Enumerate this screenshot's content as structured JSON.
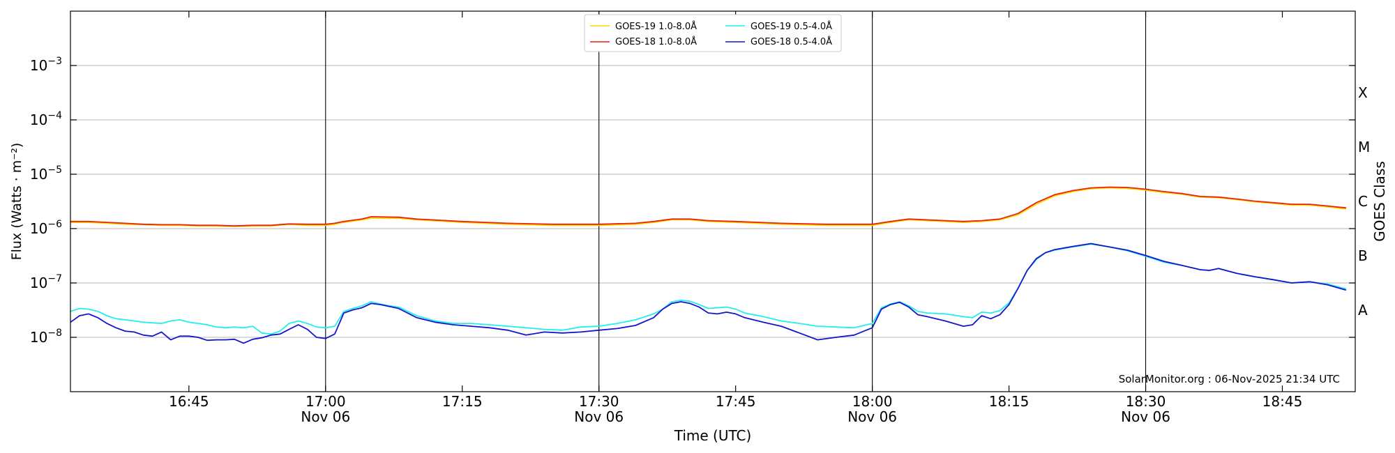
{
  "chart_data": {
    "type": "line",
    "title": "",
    "xlabel": "Time (UTC)",
    "ylabel": "Flux (Watts · m⁻²)",
    "ylabel_right": "GOES Class",
    "y_scale": "log",
    "ylim": [
      1e-09,
      0.01
    ],
    "xlim": [
      "2025-11-06 16:32",
      "2025-11-06 18:53"
    ],
    "y_ticks": [
      {
        "value": 1e-08,
        "mant": "10",
        "exp": "−8"
      },
      {
        "value": 1e-07,
        "mant": "10",
        "exp": "−7"
      },
      {
        "value": 1e-06,
        "mant": "10",
        "exp": "−6"
      },
      {
        "value": 1e-05,
        "mant": "10",
        "exp": "−5"
      },
      {
        "value": 0.0001,
        "mant": "10",
        "exp": "−4"
      },
      {
        "value": 0.001,
        "mant": "10",
        "exp": "−3"
      }
    ],
    "x_ticks": [
      {
        "time": "16:45",
        "label": "16:45",
        "sublabel": ""
      },
      {
        "time": "17:00",
        "label": "17:00",
        "sublabel": "Nov 06"
      },
      {
        "time": "17:15",
        "label": "17:15",
        "sublabel": ""
      },
      {
        "time": "17:30",
        "label": "17:30",
        "sublabel": "Nov 06"
      },
      {
        "time": "17:45",
        "label": "17:45",
        "sublabel": ""
      },
      {
        "time": "18:00",
        "label": "18:00",
        "sublabel": "Nov 06"
      },
      {
        "time": "18:15",
        "label": "18:15",
        "sublabel": ""
      },
      {
        "time": "18:30",
        "label": "18:30",
        "sublabel": "Nov 06"
      },
      {
        "time": "18:45",
        "label": "18:45",
        "sublabel": ""
      }
    ],
    "vertical_lines": [
      "17:00",
      "17:30",
      "18:00",
      "18:30"
    ],
    "goes_classes": [
      {
        "label": "A",
        "value": 3.16e-08
      },
      {
        "label": "B",
        "value": 3.16e-07
      },
      {
        "label": "C",
        "value": 3.16e-06
      },
      {
        "label": "M",
        "value": 3.16e-05
      },
      {
        "label": "X",
        "value": 0.000316
      }
    ],
    "grid": true,
    "legend_position": "top-center",
    "annotation": "SolarMonitor.org : 06-Nov-2025 21:34 UTC",
    "series": [
      {
        "name": "GOES-19 1.0-8.0Å",
        "color": "#ffd700",
        "x": [
          "16:32",
          "16:34",
          "16:36",
          "16:38",
          "16:40",
          "16:42",
          "16:44",
          "16:46",
          "16:48",
          "16:50",
          "16:52",
          "16:54",
          "16:56",
          "16:58",
          "17:00",
          "17:01",
          "17:02",
          "17:04",
          "17:05",
          "17:08",
          "17:10",
          "17:15",
          "17:20",
          "17:25",
          "17:30",
          "17:34",
          "17:36",
          "17:38",
          "17:40",
          "17:42",
          "17:45",
          "17:50",
          "17:55",
          "18:00",
          "18:02",
          "18:04",
          "18:08",
          "18:10",
          "18:12",
          "18:14",
          "18:16",
          "18:18",
          "18:20",
          "18:22",
          "18:24",
          "18:26",
          "18:28",
          "18:30",
          "18:32",
          "18:34",
          "18:36",
          "18:38",
          "18:40",
          "18:42",
          "18:44",
          "18:46",
          "18:48",
          "18:50",
          "18:52"
        ],
        "y": [
          1.3e-06,
          1.3e-06,
          1.25e-06,
          1.2e-06,
          1.18e-06,
          1.15e-06,
          1.15e-06,
          1.12e-06,
          1.12e-06,
          1.1e-06,
          1.12e-06,
          1.12e-06,
          1.2e-06,
          1.15e-06,
          1.15e-06,
          1.2e-06,
          1.3e-06,
          1.45e-06,
          1.55e-06,
          1.55e-06,
          1.45e-06,
          1.3e-06,
          1.2e-06,
          1.15e-06,
          1.15e-06,
          1.2e-06,
          1.3e-06,
          1.45e-06,
          1.45e-06,
          1.35e-06,
          1.3e-06,
          1.2e-06,
          1.15e-06,
          1.15e-06,
          1.3e-06,
          1.45e-06,
          1.35e-06,
          1.3e-06,
          1.35e-06,
          1.45e-06,
          1.8e-06,
          2.8e-06,
          4e-06,
          4.8e-06,
          5.4e-06,
          5.6e-06,
          5.5e-06,
          5.1e-06,
          4.6e-06,
          4.3e-06,
          3.8e-06,
          3.7e-06,
          3.4e-06,
          3.1e-06,
          2.9e-06,
          2.7e-06,
          2.7e-06,
          2.5e-06,
          2.3e-06
        ]
      },
      {
        "name": "GOES-18 1.0-8.0Å",
        "color": "#e8250c",
        "x": [
          "16:32",
          "16:34",
          "16:36",
          "16:38",
          "16:40",
          "16:42",
          "16:44",
          "16:46",
          "16:48",
          "16:50",
          "16:52",
          "16:54",
          "16:56",
          "16:58",
          "17:00",
          "17:01",
          "17:02",
          "17:04",
          "17:05",
          "17:08",
          "17:10",
          "17:15",
          "17:20",
          "17:25",
          "17:30",
          "17:34",
          "17:36",
          "17:38",
          "17:40",
          "17:42",
          "17:45",
          "17:50",
          "17:55",
          "18:00",
          "18:02",
          "18:04",
          "18:08",
          "18:10",
          "18:12",
          "18:14",
          "18:16",
          "18:18",
          "18:20",
          "18:22",
          "18:24",
          "18:26",
          "18:28",
          "18:30",
          "18:32",
          "18:34",
          "18:36",
          "18:38",
          "18:40",
          "18:42",
          "18:44",
          "18:46",
          "18:48",
          "18:50",
          "18:52"
        ],
        "y": [
          1.35e-06,
          1.35e-06,
          1.3e-06,
          1.25e-06,
          1.2e-06,
          1.18e-06,
          1.18e-06,
          1.15e-06,
          1.15e-06,
          1.12e-06,
          1.15e-06,
          1.15e-06,
          1.22e-06,
          1.2e-06,
          1.2e-06,
          1.25e-06,
          1.35e-06,
          1.5e-06,
          1.65e-06,
          1.62e-06,
          1.5e-06,
          1.35e-06,
          1.25e-06,
          1.2e-06,
          1.2e-06,
          1.25e-06,
          1.35e-06,
          1.5e-06,
          1.5e-06,
          1.4e-06,
          1.35e-06,
          1.25e-06,
          1.2e-06,
          1.2e-06,
          1.35e-06,
          1.5e-06,
          1.4e-06,
          1.35e-06,
          1.4e-06,
          1.5e-06,
          1.9e-06,
          3e-06,
          4.2e-06,
          5e-06,
          5.6e-06,
          5.8e-06,
          5.7e-06,
          5.3e-06,
          4.8e-06,
          4.4e-06,
          3.9e-06,
          3.8e-06,
          3.5e-06,
          3.2e-06,
          3e-06,
          2.8e-06,
          2.8e-06,
          2.6e-06,
          2.4e-06
        ]
      },
      {
        "name": "GOES-19 0.5-4.0Å",
        "color": "#22eeee",
        "x": [
          "16:32",
          "16:33",
          "16:34",
          "16:35",
          "16:36",
          "16:37",
          "16:38",
          "16:39",
          "16:40",
          "16:41",
          "16:42",
          "16:43",
          "16:44",
          "16:45",
          "16:46",
          "16:47",
          "16:48",
          "16:49",
          "16:50",
          "16:51",
          "16:52",
          "16:53",
          "16:54",
          "16:55",
          "16:56",
          "16:57",
          "16:58",
          "16:59",
          "17:00",
          "17:01",
          "17:02",
          "17:03",
          "17:04",
          "17:05",
          "17:06",
          "17:07",
          "17:08",
          "17:10",
          "17:12",
          "17:14",
          "17:16",
          "17:18",
          "17:20",
          "17:22",
          "17:24",
          "17:26",
          "17:28",
          "17:30",
          "17:32",
          "17:34",
          "17:36",
          "17:37",
          "17:38",
          "17:39",
          "17:40",
          "17:41",
          "17:42",
          "17:43",
          "17:44",
          "17:45",
          "17:46",
          "17:48",
          "17:50",
          "17:52",
          "17:54",
          "17:56",
          "17:58",
          "18:00",
          "18:01",
          "18:02",
          "18:03",
          "18:04",
          "18:05",
          "18:06",
          "18:08",
          "18:10",
          "18:11",
          "18:12",
          "18:13",
          "18:14",
          "18:15",
          "18:16",
          "18:17",
          "18:18",
          "18:19",
          "18:20",
          "18:22",
          "18:24",
          "18:26",
          "18:28",
          "18:30",
          "18:32",
          "18:34",
          "18:36",
          "18:37",
          "18:38",
          "18:40",
          "18:42",
          "18:44",
          "18:46",
          "18:48",
          "18:50",
          "18:52"
        ],
        "y": [
          3e-08,
          3.4e-08,
          3.3e-08,
          3e-08,
          2.5e-08,
          2.2e-08,
          2.1e-08,
          2e-08,
          1.9e-08,
          1.85e-08,
          1.8e-08,
          2e-08,
          2.1e-08,
          1.9e-08,
          1.8e-08,
          1.7e-08,
          1.55e-08,
          1.5e-08,
          1.55e-08,
          1.5e-08,
          1.6e-08,
          1.2e-08,
          1.15e-08,
          1.3e-08,
          1.8e-08,
          2e-08,
          1.8e-08,
          1.55e-08,
          1.5e-08,
          1.6e-08,
          3e-08,
          3.4e-08,
          3.8e-08,
          4.5e-08,
          4.1e-08,
          3.8e-08,
          3.6e-08,
          2.5e-08,
          2e-08,
          1.8e-08,
          1.8e-08,
          1.7e-08,
          1.6e-08,
          1.5e-08,
          1.4e-08,
          1.35e-08,
          1.55e-08,
          1.6e-08,
          1.8e-08,
          2.1e-08,
          2.7e-08,
          3.3e-08,
          4.5e-08,
          4.8e-08,
          4.6e-08,
          4e-08,
          3.4e-08,
          3.5e-08,
          3.6e-08,
          3.3e-08,
          2.8e-08,
          2.4e-08,
          2e-08,
          1.8e-08,
          1.6e-08,
          1.55e-08,
          1.5e-08,
          1.8e-08,
          3.5e-08,
          4.1e-08,
          4.5e-08,
          3.8e-08,
          3e-08,
          2.8e-08,
          2.7e-08,
          2.4e-08,
          2.3e-08,
          2.9e-08,
          2.8e-08,
          3.1e-08,
          4.3e-08,
          8e-08,
          1.7e-07,
          2.7e-07,
          3.6e-07,
          4e-07,
          4.6e-07,
          5.2e-07,
          4.6e-07,
          3.9e-07,
          3.1e-07,
          2.4e-07,
          2.1e-07,
          1.75e-07,
          1.7e-07,
          1.85e-07,
          1.5e-07,
          1.3e-07,
          1.15e-07,
          1e-07,
          1.05e-07,
          9.5e-08,
          7.8e-08
        ]
      },
      {
        "name": "GOES-18 0.5-4.0Å",
        "color": "#1414cc",
        "x": [
          "16:32",
          "16:33",
          "16:34",
          "16:35",
          "16:36",
          "16:37",
          "16:38",
          "16:39",
          "16:40",
          "16:41",
          "16:42",
          "16:43",
          "16:44",
          "16:45",
          "16:46",
          "16:47",
          "16:48",
          "16:49",
          "16:50",
          "16:51",
          "16:52",
          "16:53",
          "16:54",
          "16:55",
          "16:56",
          "16:57",
          "16:58",
          "16:59",
          "17:00",
          "17:01",
          "17:02",
          "17:03",
          "17:04",
          "17:05",
          "17:06",
          "17:07",
          "17:08",
          "17:10",
          "17:12",
          "17:14",
          "17:16",
          "17:18",
          "17:20",
          "17:22",
          "17:24",
          "17:26",
          "17:28",
          "17:30",
          "17:32",
          "17:34",
          "17:36",
          "17:37",
          "17:38",
          "17:39",
          "17:40",
          "17:41",
          "17:42",
          "17:43",
          "17:44",
          "17:45",
          "17:46",
          "17:48",
          "17:50",
          "17:52",
          "17:54",
          "17:56",
          "17:58",
          "18:00",
          "18:01",
          "18:02",
          "18:03",
          "18:04",
          "18:05",
          "18:06",
          "18:08",
          "18:10",
          "18:11",
          "18:12",
          "18:13",
          "18:14",
          "18:15",
          "18:16",
          "18:17",
          "18:18",
          "18:19",
          "18:20",
          "18:22",
          "18:24",
          "18:26",
          "18:28",
          "18:30",
          "18:32",
          "18:34",
          "18:36",
          "18:37",
          "18:38",
          "18:40",
          "18:42",
          "18:44",
          "18:46",
          "18:48",
          "18:50",
          "18:52"
        ],
        "y": [
          1.9e-08,
          2.5e-08,
          2.7e-08,
          2.3e-08,
          1.8e-08,
          1.5e-08,
          1.3e-08,
          1.25e-08,
          1.1e-08,
          1.05e-08,
          1.25e-08,
          9e-09,
          1.05e-08,
          1.05e-08,
          1e-08,
          8.8e-09,
          9e-09,
          9e-09,
          9.2e-09,
          7.8e-09,
          9.2e-09,
          9.8e-09,
          1.1e-08,
          1.15e-08,
          1.4e-08,
          1.7e-08,
          1.4e-08,
          1e-08,
          9.5e-09,
          1.15e-08,
          2.8e-08,
          3.2e-08,
          3.5e-08,
          4.2e-08,
          4e-08,
          3.7e-08,
          3.4e-08,
          2.3e-08,
          1.9e-08,
          1.7e-08,
          1.6e-08,
          1.5e-08,
          1.35e-08,
          1.1e-08,
          1.25e-08,
          1.2e-08,
          1.25e-08,
          1.35e-08,
          1.45e-08,
          1.65e-08,
          2.3e-08,
          3.3e-08,
          4.2e-08,
          4.5e-08,
          4.2e-08,
          3.6e-08,
          2.8e-08,
          2.7e-08,
          2.9e-08,
          2.7e-08,
          2.3e-08,
          1.9e-08,
          1.6e-08,
          1.2e-08,
          9e-09,
          1e-08,
          1.1e-08,
          1.5e-08,
          3.3e-08,
          4e-08,
          4.4e-08,
          3.6e-08,
          2.6e-08,
          2.4e-08,
          2e-08,
          1.6e-08,
          1.7e-08,
          2.5e-08,
          2.2e-08,
          2.6e-08,
          4e-08,
          8e-08,
          1.7e-07,
          2.8e-07,
          3.6e-07,
          4.1e-07,
          4.7e-07,
          5.3e-07,
          4.6e-07,
          4e-07,
          3.2e-07,
          2.5e-07,
          2.1e-07,
          1.75e-07,
          1.7e-07,
          1.85e-07,
          1.5e-07,
          1.3e-07,
          1.15e-07,
          1e-07,
          1.05e-07,
          9.2e-08,
          7.4e-08
        ]
      }
    ]
  }
}
